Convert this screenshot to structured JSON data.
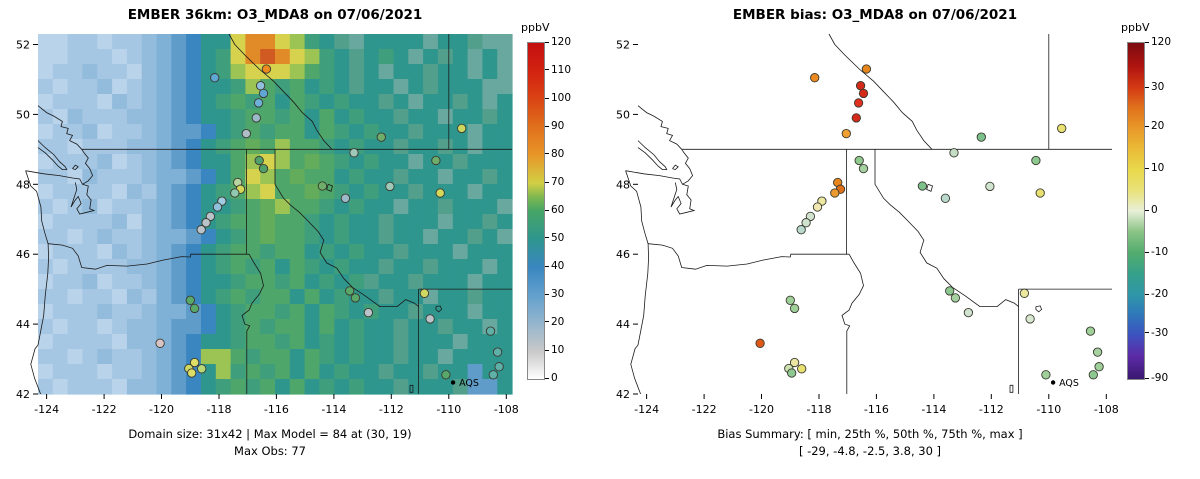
{
  "left": {
    "title": "EMBER 36km: O3_MDA8 on 07/06/2021",
    "caption1": "Domain size: 31x42 | Max Model = 84 at (30, 19)",
    "caption2": "Max Obs: 77",
    "legend": "AQS",
    "colorbar": {
      "title": "ppbV",
      "ticks": [
        {
          "label": "120",
          "pos": 0
        },
        {
          "label": "110",
          "pos": 0.0833
        },
        {
          "label": "100",
          "pos": 0.1667
        },
        {
          "label": "90",
          "pos": 0.25
        },
        {
          "label": "80",
          "pos": 0.3333
        },
        {
          "label": "70",
          "pos": 0.4167
        },
        {
          "label": "60",
          "pos": 0.5
        },
        {
          "label": "50",
          "pos": 0.5833
        },
        {
          "label": "40",
          "pos": 0.6667
        },
        {
          "label": "30",
          "pos": 0.75
        },
        {
          "label": "20",
          "pos": 0.8333
        },
        {
          "label": "10",
          "pos": 0.9167
        },
        {
          "label": "0",
          "pos": 1
        }
      ],
      "gradient": [
        [
          0,
          "#ffffff"
        ],
        [
          0.083,
          "#c8c8c8"
        ],
        [
          0.167,
          "#93b5cd"
        ],
        [
          0.25,
          "#62a0cd"
        ],
        [
          0.333,
          "#3a86c0"
        ],
        [
          0.417,
          "#2f968e"
        ],
        [
          0.5,
          "#46a565"
        ],
        [
          0.542,
          "#7fb84f"
        ],
        [
          0.583,
          "#d2cf45"
        ],
        [
          0.667,
          "#e89628"
        ],
        [
          0.75,
          "#e0701c"
        ],
        [
          0.833,
          "#da4414"
        ],
        [
          0.917,
          "#d22210"
        ],
        [
          1,
          "#c41010"
        ]
      ]
    }
  },
  "right": {
    "title": "EMBER bias: O3_MDA8 on 07/06/2021",
    "caption1": "Bias Summary: [ min, 25th %, 50th %, 75th %, max ]",
    "caption2": "[ -29,  -4.8,  -2.5,  3.8,  30 ]",
    "legend": "AQS",
    "colorbar": {
      "title": "ppbV",
      "ticks": [
        {
          "label": "120",
          "pos": 0
        },
        {
          "label": "30",
          "pos": 0.135
        },
        {
          "label": "20",
          "pos": 0.25
        },
        {
          "label": "10",
          "pos": 0.375
        },
        {
          "label": "0",
          "pos": 0.5
        },
        {
          "label": "-10",
          "pos": 0.625
        },
        {
          "label": "-20",
          "pos": 0.75
        },
        {
          "label": "-30",
          "pos": 0.865
        },
        {
          "label": "-90",
          "pos": 1
        }
      ],
      "gradient": [
        [
          0,
          "#3a1870"
        ],
        [
          0.07,
          "#5c2ba8"
        ],
        [
          0.135,
          "#3a55c0"
        ],
        [
          0.2,
          "#2f7cb8"
        ],
        [
          0.25,
          "#2f96a8"
        ],
        [
          0.31,
          "#35a08c"
        ],
        [
          0.375,
          "#52ac6e"
        ],
        [
          0.44,
          "#8cc487"
        ],
        [
          0.5,
          "#e8f0d8"
        ],
        [
          0.56,
          "#e8e27a"
        ],
        [
          0.625,
          "#e8d84a"
        ],
        [
          0.69,
          "#eab835"
        ],
        [
          0.75,
          "#e89628"
        ],
        [
          0.81,
          "#e0701c"
        ],
        [
          0.865,
          "#d43c14"
        ],
        [
          0.93,
          "#b01410"
        ],
        [
          1,
          "#7c0c10"
        ]
      ]
    }
  },
  "axes": {
    "x_ticks": [
      -124,
      -122,
      -120,
      -118,
      -116,
      -114,
      -112,
      -110,
      -108
    ],
    "y_ticks": [
      42,
      44,
      46,
      48,
      50,
      52
    ],
    "lon_range": [
      -124.3,
      -107.8
    ],
    "lat_range": [
      42,
      52.3
    ]
  },
  "stations": [
    {
      "lon": -118.15,
      "lat": 51.05,
      "obs": "#5ea6d4",
      "bias": "#ec8a20"
    },
    {
      "lon": -116.35,
      "lat": 51.3,
      "obs": "#ec8a20",
      "bias": "#e8861e"
    },
    {
      "lon": -116.55,
      "lat": 50.82,
      "obs": "#8fc0dc",
      "bias": "#d42a1a"
    },
    {
      "lon": -116.45,
      "lat": 50.6,
      "obs": "#5ea6d4",
      "bias": "#d42a1a"
    },
    {
      "lon": -116.62,
      "lat": 50.33,
      "obs": "#6fb0d8",
      "bias": "#e03020"
    },
    {
      "lon": -116.7,
      "lat": 49.9,
      "obs": "#9bb9c9",
      "bias": "#d42a1a"
    },
    {
      "lon": -117.05,
      "lat": 49.45,
      "obs": "#aebec6",
      "bias": "#f0a030"
    },
    {
      "lon": -116.6,
      "lat": 48.68,
      "obs": "#4fa06a",
      "bias": "#8fc98f"
    },
    {
      "lon": -116.45,
      "lat": 48.45,
      "obs": "#4fa06a",
      "bias": "#a5d2a0"
    },
    {
      "lon": -109.55,
      "lat": 49.6,
      "obs": "#ccd65e",
      "bias": "#e8e070"
    },
    {
      "lon": -112.35,
      "lat": 49.35,
      "obs": "#6fae6a",
      "bias": "#7cc08c"
    },
    {
      "lon": -113.3,
      "lat": 48.9,
      "obs": "#9fc8b8",
      "bias": "#c5ddc5"
    },
    {
      "lon": -110.45,
      "lat": 48.68,
      "obs": "#6fae6a",
      "bias": "#8cc890"
    },
    {
      "lon": -110.3,
      "lat": 47.75,
      "obs": "#d6d85a",
      "bias": "#e8e070"
    },
    {
      "lon": -117.35,
      "lat": 48.05,
      "obs": "#b8d4a0",
      "bias": "#e8861e"
    },
    {
      "lon": -117.25,
      "lat": 47.86,
      "obs": "#d6d85a",
      "bias": "#e07018"
    },
    {
      "lon": -117.45,
      "lat": 47.75,
      "obs": "#8fc9b0",
      "bias": "#ec9a30"
    },
    {
      "lon": -117.9,
      "lat": 47.52,
      "obs": "#a0cbe0",
      "bias": "#ece8a0"
    },
    {
      "lon": -118.05,
      "lat": 47.35,
      "obs": "#8fc0dc",
      "bias": "#f0e8b0"
    },
    {
      "lon": -114.4,
      "lat": 47.95,
      "obs": "#6fae6a",
      "bias": "#7cc08c"
    },
    {
      "lon": -113.6,
      "lat": 47.6,
      "obs": "#9bb9c9",
      "bias": "#b9d9cf"
    },
    {
      "lon": -112.05,
      "lat": 47.94,
      "obs": "#9fc8b8",
      "bias": "#cfe3cf"
    },
    {
      "lon": -118.3,
      "lat": 47.08,
      "obs": "#b9c3c9",
      "bias": "#cfe3cf"
    },
    {
      "lon": -118.45,
      "lat": 46.9,
      "obs": "#b9c3c9",
      "bias": "#cfe3cf"
    },
    {
      "lon": -118.62,
      "lat": 46.7,
      "obs": "#b9c3c9",
      "bias": "#b9d9cf"
    },
    {
      "lon": -119.0,
      "lat": 44.68,
      "obs": "#58a86a",
      "bias": "#9fd09a"
    },
    {
      "lon": -118.85,
      "lat": 44.45,
      "obs": "#58a86a",
      "bias": "#9fd09a"
    },
    {
      "lon": -113.45,
      "lat": 44.95,
      "obs": "#58a86a",
      "bias": "#8cc890"
    },
    {
      "lon": -113.25,
      "lat": 44.75,
      "obs": "#58a86a",
      "bias": "#a5d2a0"
    },
    {
      "lon": -112.8,
      "lat": 44.33,
      "obs": "#b9c3c9",
      "bias": "#cfe3cf"
    },
    {
      "lon": -110.85,
      "lat": 44.88,
      "obs": "#cfd860",
      "bias": "#ece8a0"
    },
    {
      "lon": -110.65,
      "lat": 44.15,
      "obs": "#b9c3c9",
      "bias": "#d8e8d0"
    },
    {
      "lon": -108.55,
      "lat": 43.8,
      "obs": "#5fb0a8",
      "bias": "#9fd09a"
    },
    {
      "lon": -108.3,
      "lat": 43.2,
      "obs": "#5fb0a8",
      "bias": "#a5d2a0"
    },
    {
      "lon": -120.05,
      "lat": 43.45,
      "obs": "#d8c4c4",
      "bias": "#e05818"
    },
    {
      "lon": -118.85,
      "lat": 42.9,
      "obs": "#dede66",
      "bias": "#eae6a2"
    },
    {
      "lon": -119.05,
      "lat": 42.73,
      "obs": "#cfd860",
      "bias": "#cde2b0"
    },
    {
      "lon": -118.95,
      "lat": 42.6,
      "obs": "#dede66",
      "bias": "#8cc890"
    },
    {
      "lon": -118.6,
      "lat": 42.72,
      "obs": "#b8d878",
      "bias": "#e8e070"
    },
    {
      "lon": -110.1,
      "lat": 42.55,
      "obs": "#58a86a",
      "bias": "#9fd09a"
    },
    {
      "lon": -108.45,
      "lat": 42.55,
      "obs": "#5fb0a8",
      "bias": "#8cc890"
    },
    {
      "lon": -108.25,
      "lat": 42.78,
      "obs": "#5fb0a8",
      "bias": "#9fd09a"
    }
  ],
  "chart_data": [
    {
      "type": "heatmap",
      "title": "EMBER 36km: O3_MDA8 on 07/06/2021",
      "xlabel": "",
      "ylabel": "",
      "x_ticks": [
        -124,
        -122,
        -120,
        -118,
        -116,
        -114,
        -112,
        -110,
        -108
      ],
      "y_ticks": [
        42,
        44,
        46,
        48,
        50,
        52
      ],
      "xlim": [
        -124.3,
        -107.8
      ],
      "ylim": [
        42,
        52.3
      ],
      "colorbar_label": "ppbV",
      "colorbar_range": [
        0,
        120
      ],
      "colorbar_tick_values": [
        0,
        10,
        20,
        30,
        40,
        50,
        60,
        70,
        80,
        90,
        100,
        110,
        120
      ],
      "legend_point_label": "AQS",
      "annotations": [
        "Domain size: 31x42 | Max Model = 84 at (30, 19)",
        "Max Obs: 77"
      ],
      "max_model": 84,
      "max_model_cell": [
        30,
        19
      ],
      "max_obs": 77,
      "domain_size": "31x42",
      "grid_rows": 24,
      "grid_cols": 32,
      "palette": {
        "a": "#b9d3ea",
        "b": "#a6c7e3",
        "c": "#93bbdc",
        "d": "#7fb0d6",
        "e": "#5f9cca",
        "f": "#3a86c0",
        "t": "#2f968e",
        "u": "#3f9e7c",
        "v": "#4fa66a",
        "w": "#62ac5c",
        "m": "#52a08c",
        "n": "#68a89e",
        "y": "#9cc455",
        "Y": "#d6d24e",
        "O": "#e08a28",
        "R": "#d05a22"
      },
      "palette_values_ppbv": {
        "a": 32,
        "b": 33,
        "c": 35,
        "d": 38,
        "e": 42,
        "f": 45,
        "t": 50,
        "u": 54,
        "v": 57,
        "w": 60,
        "m": 52,
        "n": 51,
        "y": 65,
        "Y": 70,
        "O": 80,
        "R": 84
      },
      "grid": [
        "aabbabbcdefttYOOYyutmnttttnttmnn",
        "aabbbabcdeftuYOROYyutmtutntmtntn",
        "abbcbbacdeftuyYYYyvutmtnttmttntn",
        "babbcabcdefttuyvuvtutmttntmtttnn",
        "abbbacbcdeftuvuvtvututtmtnttmtnt",
        "bacbbbccdefttuvvuvtvtuttmttnttmt",
        "abbcabbcdeeftuvuvvtvututtmtttntt",
        "bbabbbccdeftuvwvyvvututtmttmtntt",
        "abbbcabcdefttvyYyvwvututtnttmttt",
        "bbacbbbcddeftvYyvwvvtuttmttnttmt",
        "abbbbacbdeftuvyYvvwvututtmtttntt",
        "babcabbcdefttuvwyvvututtnttmtttn",
        "abbbbcacdeftuvvwvvututtmtttnttmt",
        "bbabcbbcddeftuvwvvututtmttnttmtn",
        "abbbacbcdeftuvvuvvtututtmtttnttt",
        "babbbbccdeftuvuvtvututtmttmtttnt",
        "abbcabbcdefttuvvuvtutumttmtttntt",
        "bbabbacbdeftuvuvvtvtuttmttnttmtt",
        "abbbcbbcddeftuvvuvtvututtmtttntt",
        "babbabccdeeftuvuvvtvtuttmttmttnt",
        "abbbbaccdefttuvvuvtututtmtttnttt",
        "bbabcbbcdefyyvuvvtvututtmttntttt",
        "abbbabbcdeftyuvuvtvtuttmttmttett",
        "babbbaccdeftuvuvtvtututtmtttmeet"
      ]
    },
    {
      "type": "scatter",
      "title": "EMBER bias: O3_MDA8 on 07/06/2021",
      "xlabel": "",
      "ylabel": "",
      "x_ticks": [
        -124,
        -122,
        -120,
        -118,
        -116,
        -114,
        -112,
        -110,
        -108
      ],
      "y_ticks": [
        42,
        44,
        46,
        48,
        50,
        52
      ],
      "xlim": [
        -124.3,
        -107.8
      ],
      "ylim": [
        42,
        52.3
      ],
      "colorbar_label": "ppbV",
      "colorbar_tick_values": [
        120,
        30,
        20,
        10,
        0,
        -10,
        -20,
        -30,
        -90
      ],
      "legend_point_label": "AQS",
      "annotations": [
        "Bias Summary: [ min, 25th %, 50th %, 75th %, max ]",
        "[ -29,  -4.8,  -2.5,  3.8,  30 ]"
      ],
      "bias_summary": {
        "min": -29,
        "p25": -4.8,
        "p50": -2.5,
        "p75": 3.8,
        "max": 30
      },
      "points_source": "stations (lon/lat) with bias color per station"
    }
  ]
}
